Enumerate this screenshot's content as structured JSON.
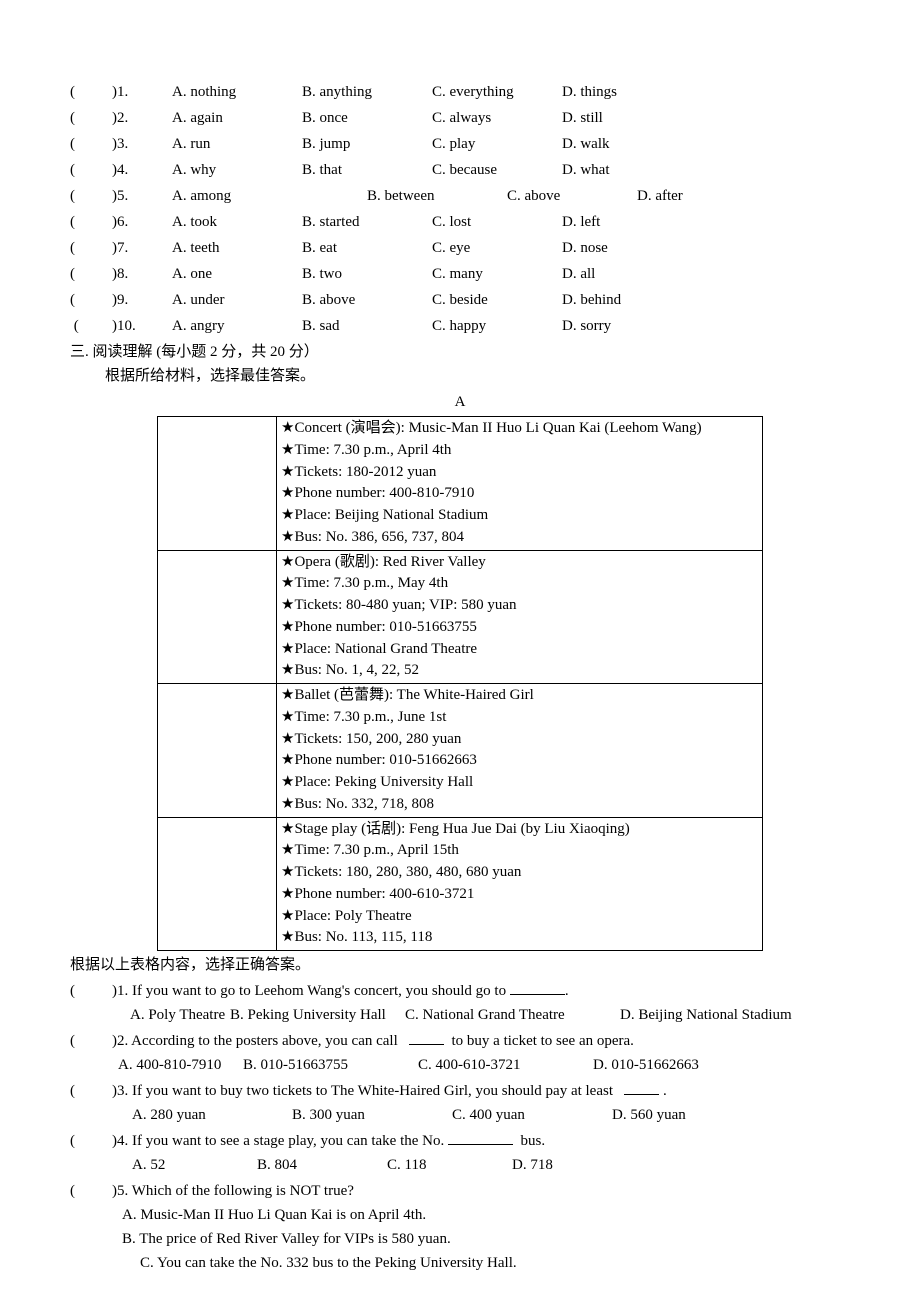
{
  "paren_open": "(",
  "paren_close": ")",
  "mc": [
    {
      "num": "1.",
      "a": "A. nothing",
      "b": "B. anything",
      "c": "C. everything",
      "d": "D. things"
    },
    {
      "num": "2.",
      "a": "A. again",
      "b": "B. once",
      "c": "C. always",
      "d": "D. still"
    },
    {
      "num": "3.",
      "a": "A. run",
      "b": "B. jump",
      "c": "C. play",
      "d": "D. walk"
    },
    {
      "num": "4.",
      "a": "A. why",
      "b": "B. that",
      "c": "C. because",
      "d": "D. what"
    },
    {
      "num": "5.",
      "a": "A. among",
      "b": "B. between",
      "c": "C. above",
      "d": "D. after",
      "wide": true
    },
    {
      "num": "6.",
      "a": "A. took",
      "b": "B. started",
      "c": "C. lost",
      "d": "D. left"
    },
    {
      "num": "7.",
      "a": "A. teeth",
      "b": "B. eat",
      "c": "C. eye",
      "d": "D. nose"
    },
    {
      "num": "8.",
      "a": "A. one",
      "b": "B. two",
      "c": "C. many",
      "d": "D. all"
    },
    {
      "num": "9.",
      "a": "A. under",
      "b": "B. above",
      "c": "C. beside",
      "d": "D. behind"
    },
    {
      "num": "10.",
      "a": "A. angry",
      "b": "B. sad",
      "c": "C. happy",
      "d": "D. sorry",
      "pad": true
    }
  ],
  "section3_title": "三. 阅读理解 (每小题 2 分，共 20 分）",
  "section3_sub": "根据所给材料，选择最佳答案。",
  "letter_A": "A",
  "events": [
    [
      "★Concert (演唱会): Music-Man II Huo Li Quan Kai (Leehom Wang)",
      "★Time: 7.30 p.m., April 4th",
      "★Tickets: 180-2012 yuan",
      "★Phone number: 400-810-7910",
      "★Place: Beijing National Stadium",
      "★Bus: No. 386, 656, 737, 804"
    ],
    [
      "★Opera (歌剧): Red River Valley",
      "★Time: 7.30 p.m., May 4th",
      "★Tickets: 80-480 yuan; VIP: 580 yuan",
      "★Phone number: 010-51663755",
      "★Place: National Grand Theatre",
      "★Bus: No. 1, 4, 22, 52"
    ],
    [
      "★Ballet (芭蕾舞): The White-Haired Girl",
      "★Time: 7.30 p.m., June 1st",
      "★Tickets: 150, 200, 280 yuan",
      "★Phone number: 010-51662663",
      "★Place: Peking University Hall",
      "★Bus: No. 332, 718, 808"
    ],
    [
      "★Stage play (话剧): Feng Hua Jue Dai (by Liu Xiaoqing)",
      "★Time: 7.30 p.m., April 15th",
      "★Tickets: 180, 280, 380, 480, 680 yuan",
      "★Phone number: 400-610-3721",
      "★Place: Poly Theatre",
      "★Bus: No. 113, 115, 118"
    ]
  ],
  "after_table": "根据以上表格内容，选择正确答案。",
  "q1_stem_a": ")1. If you want to go to Leehom Wang's concert, you should go to ",
  "q1_stem_b": ".",
  "q1_opts": {
    "a": "A. Poly Theatre",
    "b": "B. Peking University Hall",
    "c": "C. National Grand Theatre",
    "d": "D. Beijing National Stadium"
  },
  "q2_stem_a": ")2. According to the posters above, you can call ",
  "q2_stem_b": " to buy a ticket to see an opera.",
  "q2_opts": {
    "a": "A. 400-810-7910",
    "b": "B. 010-51663755",
    "c": "C. 400-610-3721",
    "d": "D. 010-51662663"
  },
  "q3_stem_a": ")3. If you want to buy two tickets to The White-Haired Girl, you should pay at least ",
  "q3_stem_b": " .",
  "q3_opts": {
    "a": "A. 280 yuan",
    "b": "B. 300 yuan",
    "c": "C. 400 yuan",
    "d": "D. 560 yuan"
  },
  "q4_stem_a": ")4. If you want to see a stage play, you can take the No. ",
  "q4_stem_b": " bus.",
  "q4_opts": {
    "a": "A. 52",
    "b": "B. 804",
    "c": "C. 118",
    "d": "D. 718"
  },
  "q5_stem": ")5. Which of the following is NOT true?",
  "q5_a": "A. Music-Man II Huo Li Quan Kai is on April 4th.",
  "q5_b": "B. The price of Red River Valley for VIPs is 580 yuan.",
  "q5_c": "C. You can take the No. 332 bus to the Peking University Hall."
}
